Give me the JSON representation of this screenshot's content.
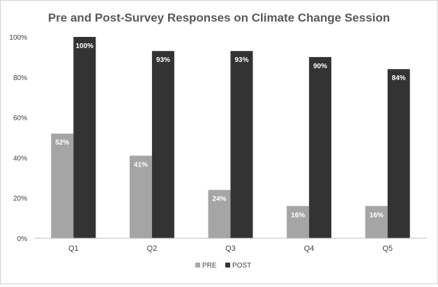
{
  "chart_data": {
    "type": "bar",
    "title": "Pre and Post-Survey Responses on Climate Change Session",
    "categories": [
      "Q1",
      "Q2",
      "Q3",
      "Q4",
      "Q5"
    ],
    "series": [
      {
        "name": "PRE",
        "values": [
          52,
          41,
          24,
          16,
          16
        ],
        "labels": [
          "52%",
          "41%",
          "24%",
          "16%",
          "16%"
        ],
        "color": "#a5a5a5"
      },
      {
        "name": "POST",
        "values": [
          100,
          93,
          93,
          90,
          84
        ],
        "labels": [
          "100%",
          "93%",
          "93%",
          "90%",
          "84%"
        ],
        "color": "#333333"
      }
    ],
    "ylim": [
      0,
      100
    ],
    "yticks": [
      0,
      20,
      40,
      60,
      80,
      100
    ],
    "ytick_labels": [
      "0%",
      "20%",
      "40%",
      "60%",
      "80%",
      "100%"
    ],
    "xlabel": "",
    "ylabel": "",
    "grid": false,
    "legend_position": "bottom"
  }
}
